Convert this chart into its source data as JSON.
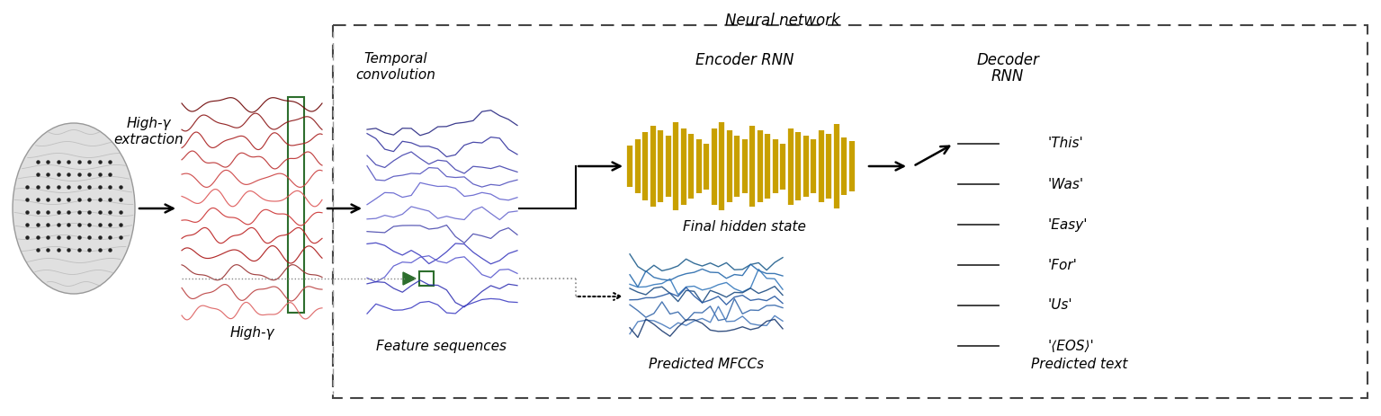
{
  "title": "Neural network",
  "brain_label_line1": "High-γ",
  "brain_label_line2": "extraction",
  "high_gamma_label": "High-γ",
  "temporal_conv_label_line1": "Temporal",
  "temporal_conv_label_line2": "convolution",
  "feature_seq_label": "Feature sequences",
  "encoder_rnn_label": "Encoder RNN",
  "decoder_rnn_label_line1": "Decoder",
  "decoder_rnn_label_line2": "RNN",
  "final_hidden_label": "Final hidden state",
  "predicted_mfccs_label": "Predicted MFCCs",
  "predicted_text_label": "Predicted text",
  "decoder_words": [
    "'This'",
    "'Was'",
    "'Easy'",
    "'For'",
    "'Us'",
    "'⟨EOS⟩'"
  ],
  "background_color": "#ffffff",
  "dashed_box_color": "#444444",
  "signal_color_green": "#2d6e2d",
  "encoder_bar_color": "#c8a000",
  "red_colors": [
    "#6b0000",
    "#8b1515",
    "#aa2020",
    "#bb3030",
    "#cc4040",
    "#dd5555",
    "#cc3333",
    "#bb2020",
    "#aa1515",
    "#993030",
    "#bb4040",
    "#dd6060"
  ],
  "feat_colors": [
    "#1a1a7a",
    "#2a2a9a",
    "#3a3aaa",
    "#4a4abb",
    "#5a5acc",
    "#6060cc",
    "#4040aa",
    "#3030bb",
    "#5050cc",
    "#2a2ab0",
    "#3535c0"
  ],
  "mfcc_colors": [
    "#1a5a8a",
    "#2266aa",
    "#3377bb",
    "#1a4a80",
    "#2255a0",
    "#3366aa",
    "#4477bb",
    "#1a3a70"
  ],
  "dotted_color": "#888888"
}
